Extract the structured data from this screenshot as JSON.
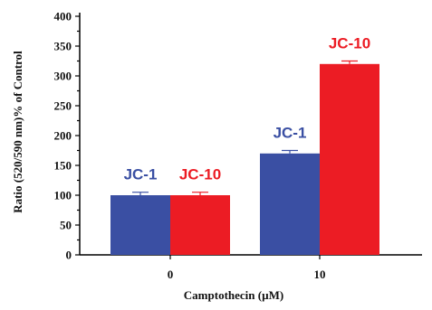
{
  "chart_data": {
    "type": "bar",
    "categories": [
      "0",
      "10"
    ],
    "series": [
      {
        "name": "JC-1",
        "values": [
          100,
          170
        ],
        "errors": [
          5,
          5
        ],
        "color": "#3a4fa3"
      },
      {
        "name": "JC-10",
        "values": [
          100,
          320
        ],
        "errors": [
          5,
          5
        ],
        "color": "#ec1c24"
      }
    ],
    "bar_labels": [
      [
        "JC-1",
        "JC-10"
      ],
      [
        "JC-1",
        "JC-10"
      ]
    ],
    "xlabel": "Camptothecin (µM)",
    "ylabel": "Ratio (520/590 nm)% of Control",
    "ylim": [
      0,
      400
    ],
    "yticks": [
      "0",
      "50",
      "100",
      "150",
      "200",
      "250",
      "300",
      "350",
      "400"
    ],
    "grid": false
  }
}
